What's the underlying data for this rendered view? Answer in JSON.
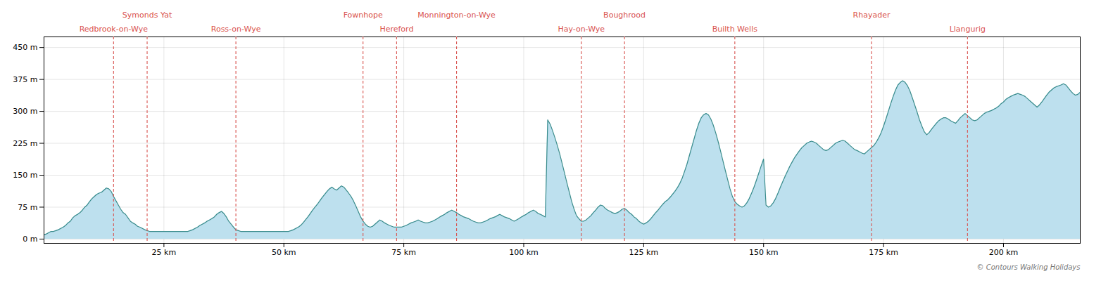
{
  "chart_data": {
    "type": "area",
    "x": [
      0,
      0.5,
      1,
      1.5,
      2,
      2.5,
      3,
      3.5,
      4,
      4.5,
      5,
      5.5,
      6,
      6.5,
      7,
      7.5,
      8,
      8.5,
      9,
      9.5,
      10,
      10.5,
      11,
      11.5,
      12,
      12.5,
      13,
      13.5,
      14,
      14.5,
      15,
      15.5,
      16,
      16.5,
      17,
      17.5,
      18,
      18.5,
      19,
      19.5,
      20,
      20.5,
      21,
      21.5,
      22,
      22.5,
      23,
      23.5,
      24,
      24.5,
      25,
      25.5,
      26,
      26.5,
      27,
      27.5,
      28,
      28.5,
      29,
      29.5,
      30,
      30.5,
      31,
      31.5,
      32,
      32.5,
      33,
      33.5,
      34,
      34.5,
      35,
      35.5,
      36,
      36.5,
      37,
      37.5,
      38,
      38.5,
      39,
      39.5,
      40,
      40.5,
      41,
      41.5,
      42,
      42.5,
      43,
      43.5,
      44,
      44.5,
      45,
      45.5,
      46,
      46.5,
      47,
      47.5,
      48,
      48.5,
      49,
      49.5,
      50,
      50.5,
      51,
      51.5,
      52,
      52.5,
      53,
      53.5,
      54,
      54.5,
      55,
      55.5,
      56,
      56.5,
      57,
      57.5,
      58,
      58.5,
      59,
      59.5,
      60,
      60.5,
      61,
      61.5,
      62,
      62.5,
      63,
      63.5,
      64,
      64.5,
      65,
      65.5,
      66,
      66.5,
      67,
      67.5,
      68,
      68.5,
      69,
      69.5,
      70,
      70.5,
      71,
      71.5,
      72,
      72.5,
      73,
      73.5,
      74,
      74.5,
      75,
      75.5,
      76,
      76.5,
      77,
      77.5,
      78,
      78.5,
      79,
      79.5,
      80,
      80.5,
      81,
      81.5,
      82,
      82.5,
      83,
      83.5,
      84,
      84.5,
      85,
      85.5,
      86,
      86.5,
      87,
      87.5,
      88,
      88.5,
      89,
      89.5,
      90,
      90.5,
      91,
      91.5,
      92,
      92.5,
      93,
      93.5,
      94,
      94.5,
      95,
      95.5,
      96,
      96.5,
      97,
      97.5,
      98,
      98.5,
      99,
      99.5,
      100,
      100.5,
      101,
      101.5,
      102,
      102.5,
      103,
      103.5,
      104,
      104.5,
      105,
      105.5,
      106,
      106.5,
      107,
      107.5,
      108,
      108.5,
      109,
      109.5,
      110,
      110.5,
      111,
      111.5,
      112,
      112.5,
      113,
      113.5,
      114,
      114.5,
      115,
      115.5,
      116,
      116.5,
      117,
      117.5,
      118,
      118.5,
      119,
      119.5,
      120,
      120.5,
      121,
      121.5,
      122,
      122.5,
      123,
      123.5,
      124,
      124.5,
      125,
      125.5,
      126,
      126.5,
      127,
      127.5,
      128,
      128.5,
      129,
      129.5,
      130,
      130.5,
      131,
      131.5,
      132,
      132.5,
      133,
      133.5,
      134,
      134.5,
      135,
      135.5,
      136,
      136.5,
      137,
      137.5,
      138,
      138.5,
      139,
      139.5,
      140,
      140.5,
      141,
      141.5,
      142,
      142.5,
      143,
      143.5,
      144,
      144.5,
      145,
      145.5,
      146,
      146.5,
      147,
      147.5,
      148,
      148.5,
      149,
      149.5,
      150,
      150.5,
      151,
      151.5,
      152,
      152.5,
      153,
      153.5,
      154,
      154.5,
      155,
      155.5,
      156,
      156.5,
      157,
      157.5,
      158,
      158.5,
      159,
      159.5,
      160,
      160.5,
      161,
      161.5,
      162,
      162.5,
      163,
      163.5,
      164,
      164.5,
      165,
      165.5,
      166,
      166.5,
      167,
      167.5,
      168,
      168.5,
      169,
      169.5,
      170,
      170.5,
      171,
      171.5,
      172,
      172.5,
      173,
      173.5,
      174,
      174.5,
      175,
      175.5,
      176,
      176.5,
      177,
      177.5,
      178,
      178.5,
      179,
      179.5,
      180,
      180.5,
      181,
      181.5,
      182,
      182.5,
      183,
      183.5,
      184,
      184.5,
      185,
      185.5,
      186,
      186.5,
      187,
      187.5,
      188,
      188.5,
      189,
      189.5,
      190,
      190.5,
      191,
      191.5,
      192,
      192.5,
      193,
      193.5,
      194,
      194.5,
      195,
      195.5,
      196,
      196.5,
      197,
      197.5,
      198,
      198.5,
      199,
      199.5,
      200,
      200.5,
      201,
      201.5,
      202,
      202.5,
      203,
      203.5,
      204,
      204.5,
      205,
      205.5,
      206,
      206.5,
      207,
      207.5,
      208,
      208.5,
      209,
      209.5,
      210,
      210.5,
      211,
      211.5,
      212,
      212.5,
      213,
      213.5,
      214,
      214.5,
      215,
      215.5,
      216
    ],
    "values": [
      10,
      12,
      15,
      18,
      18,
      20,
      22,
      25,
      28,
      32,
      38,
      42,
      50,
      55,
      58,
      62,
      68,
      75,
      80,
      88,
      95,
      100,
      105,
      108,
      110,
      115,
      120,
      118,
      112,
      100,
      90,
      80,
      70,
      62,
      58,
      50,
      42,
      38,
      35,
      30,
      28,
      25,
      22,
      20,
      18,
      18,
      18,
      18,
      18,
      18,
      18,
      18,
      18,
      18,
      18,
      18,
      18,
      18,
      18,
      18,
      18,
      20,
      22,
      25,
      28,
      32,
      35,
      38,
      42,
      45,
      48,
      52,
      58,
      62,
      65,
      60,
      52,
      42,
      35,
      28,
      22,
      20,
      18,
      18,
      18,
      18,
      18,
      18,
      18,
      18,
      18,
      18,
      18,
      18,
      18,
      18,
      18,
      18,
      18,
      18,
      18,
      18,
      18,
      20,
      22,
      25,
      28,
      32,
      38,
      45,
      52,
      60,
      68,
      75,
      82,
      90,
      98,
      105,
      112,
      118,
      122,
      118,
      115,
      120,
      125,
      122,
      115,
      108,
      100,
      90,
      78,
      65,
      52,
      42,
      35,
      30,
      28,
      30,
      35,
      40,
      45,
      42,
      38,
      35,
      32,
      30,
      28,
      28,
      28,
      28,
      30,
      32,
      35,
      38,
      40,
      42,
      45,
      42,
      40,
      38,
      38,
      40,
      42,
      45,
      48,
      52,
      55,
      58,
      62,
      65,
      68,
      65,
      62,
      58,
      55,
      52,
      50,
      48,
      45,
      42,
      40,
      38,
      38,
      40,
      42,
      45,
      48,
      50,
      52,
      55,
      58,
      55,
      52,
      50,
      48,
      45,
      42,
      45,
      48,
      52,
      55,
      58,
      62,
      65,
      68,
      65,
      60,
      58,
      55,
      52,
      280,
      270,
      255,
      238,
      220,
      200,
      178,
      155,
      132,
      110,
      88,
      70,
      55,
      48,
      42,
      42,
      45,
      50,
      55,
      62,
      68,
      75,
      80,
      78,
      72,
      68,
      65,
      62,
      60,
      62,
      65,
      70,
      72,
      68,
      62,
      58,
      52,
      48,
      42,
      38,
      35,
      38,
      42,
      48,
      55,
      62,
      68,
      75,
      82,
      88,
      92,
      98,
      105,
      112,
      120,
      130,
      142,
      158,
      175,
      195,
      215,
      235,
      255,
      272,
      285,
      292,
      295,
      292,
      282,
      268,
      250,
      230,
      208,
      185,
      162,
      140,
      118,
      100,
      88,
      82,
      78,
      75,
      78,
      85,
      95,
      108,
      122,
      138,
      155,
      172,
      188,
      80,
      75,
      78,
      85,
      95,
      108,
      122,
      135,
      148,
      160,
      172,
      182,
      192,
      200,
      208,
      215,
      220,
      225,
      228,
      230,
      228,
      225,
      220,
      215,
      210,
      208,
      210,
      215,
      220,
      225,
      228,
      230,
      232,
      230,
      225,
      220,
      215,
      210,
      208,
      205,
      202,
      200,
      205,
      210,
      215,
      220,
      228,
      238,
      250,
      265,
      282,
      300,
      318,
      335,
      350,
      362,
      368,
      372,
      368,
      360,
      348,
      332,
      315,
      298,
      280,
      265,
      252,
      245,
      250,
      258,
      265,
      272,
      278,
      282,
      285,
      285,
      282,
      278,
      275,
      272,
      278,
      285,
      290,
      295,
      290,
      285,
      280,
      278,
      280,
      285,
      290,
      295,
      298,
      300,
      302,
      305,
      308,
      312,
      318,
      322,
      328,
      332,
      335,
      338,
      340,
      342,
      340,
      338,
      335,
      330,
      325,
      320,
      315,
      310,
      315,
      322,
      330,
      338,
      345,
      350,
      355,
      358,
      360,
      362,
      365,
      362,
      355,
      348,
      342,
      338,
      340,
      345
    ],
    "colors": [
      "#bde0ee",
      "#3a8c8c"
    ],
    "xlim": [
      0,
      216
    ],
    "ylim": [
      -10,
      475
    ],
    "xticks": [
      {
        "value": 25,
        "label": "25 km"
      },
      {
        "value": 50,
        "label": "50 km"
      },
      {
        "value": 75,
        "label": "75 km"
      },
      {
        "value": 100,
        "label": "100 km"
      },
      {
        "value": 125,
        "label": "125 km"
      },
      {
        "value": 150,
        "label": "150 km"
      },
      {
        "value": 175,
        "label": "175 km"
      },
      {
        "value": 200,
        "label": "200 km"
      }
    ],
    "yticks": [
      {
        "value": 0,
        "label": "0 m"
      },
      {
        "value": 75,
        "label": "75 m"
      },
      {
        "value": 150,
        "label": "150 m"
      },
      {
        "value": 225,
        "label": "225 m"
      },
      {
        "value": 300,
        "label": "300 m"
      },
      {
        "value": 375,
        "label": "375 m"
      },
      {
        "value": 450,
        "label": "450 m"
      }
    ],
    "grid": true,
    "annotations": [
      {
        "text": "Redbrook-on-Wye",
        "x": 14.5,
        "color": "#d9534f"
      },
      {
        "text": "Symonds Yat",
        "x": 21.5,
        "color": "#d9534f"
      },
      {
        "text": "Ross-on-Wye",
        "x": 40.0,
        "color": "#d9534f"
      },
      {
        "text": "Fownhope",
        "x": 66.5,
        "color": "#d9534f"
      },
      {
        "text": "Hereford",
        "x": 73.5,
        "color": "#d9534f"
      },
      {
        "text": "Monnington-on-Wye",
        "x": 86.0,
        "color": "#d9534f"
      },
      {
        "text": "Hay-on-Wye",
        "x": 112.0,
        "color": "#d9534f"
      },
      {
        "text": "Boughrood",
        "x": 121.0,
        "color": "#d9534f"
      },
      {
        "text": "Builth Wells",
        "x": 144.0,
        "color": "#d9534f"
      },
      {
        "text": "Rhayader",
        "x": 172.5,
        "color": "#d9534f"
      },
      {
        "text": "Llangurig",
        "x": 192.5,
        "color": "#d9534f"
      }
    ],
    "caption": "© Contours Walking Holidays"
  }
}
